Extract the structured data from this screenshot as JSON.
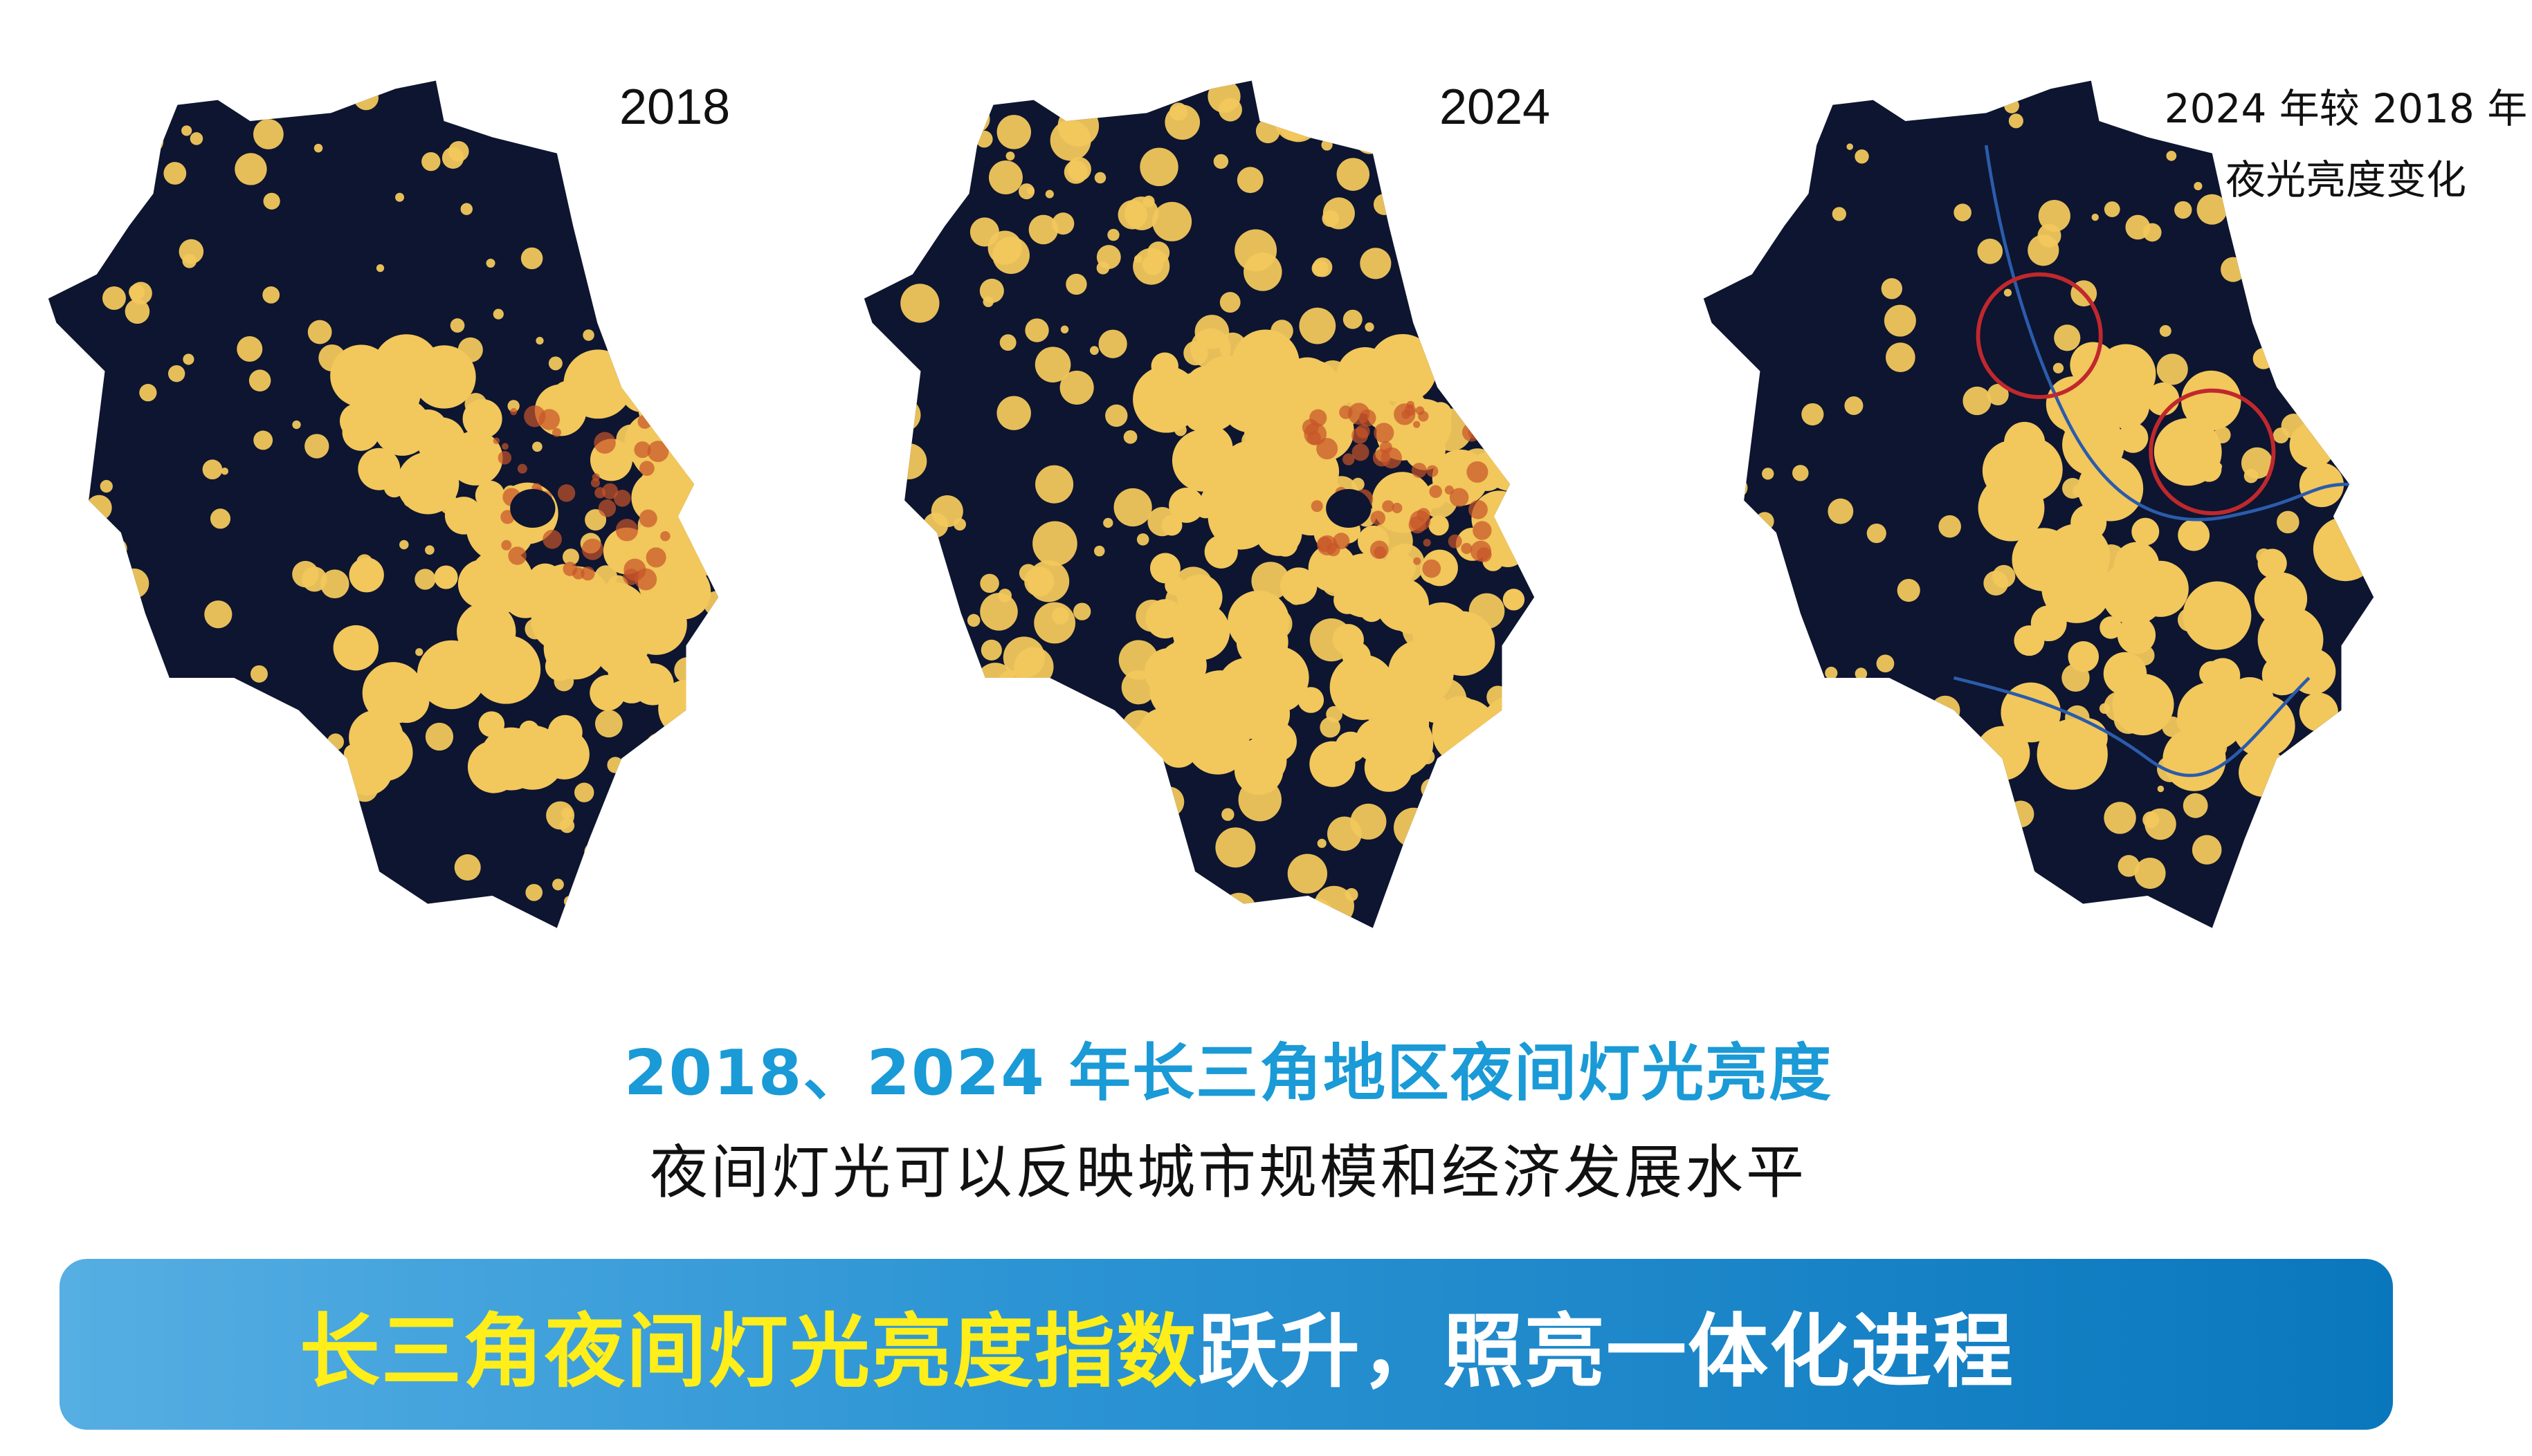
{
  "maps": [
    {
      "label": "2018"
    },
    {
      "label": "2024"
    },
    {
      "label_line1": "2024 年较 2018 年",
      "label_line2": "夜光亮度变化"
    }
  ],
  "title": "2018、2024 年长三角地区夜间灯光亮度",
  "subtitle": "夜间灯光可以反映城市规模和经济发展水平",
  "banner": {
    "highlight": "长三角夜间灯光亮度指数",
    "rest": "跃升，照亮一体化进程"
  },
  "colors": {
    "land": "#0d1530",
    "light": "#f2c75c",
    "bright": "#c8542a",
    "river": "#2b5cab",
    "circle": "#c0282d",
    "title": "#1a9ad6",
    "banner_highlight": "#ffee1a"
  }
}
